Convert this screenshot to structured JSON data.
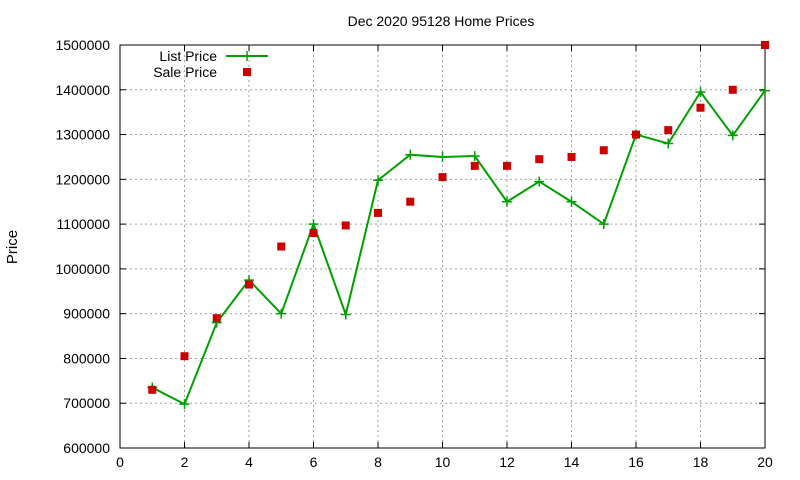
{
  "chart_data": {
    "type": "line",
    "title": "Dec 2020 95128 Home Prices",
    "xlabel": "",
    "ylabel": "Price",
    "xlim": [
      0,
      20
    ],
    "ylim": [
      600000,
      1500000
    ],
    "xticks": [
      0,
      2,
      4,
      6,
      8,
      10,
      12,
      14,
      16,
      18,
      20
    ],
    "yticks": [
      600000,
      700000,
      800000,
      900000,
      1000000,
      1100000,
      1200000,
      1300000,
      1400000,
      1500000
    ],
    "grid": true,
    "legend_position": "top-left",
    "series": [
      {
        "name": "List Price",
        "kind": "line-with-plus-markers",
        "color": "#00a000",
        "x": [
          1,
          2,
          3,
          4,
          5,
          6,
          7,
          8,
          9,
          10,
          11,
          12,
          13,
          14,
          15,
          16,
          17,
          18,
          19,
          20
        ],
        "values": [
          735000,
          698000,
          880000,
          975000,
          900000,
          1100000,
          898000,
          1198000,
          1255000,
          1250000,
          1252000,
          1150000,
          1195000,
          1150000,
          1100000,
          1300000,
          1280000,
          1395000,
          1298000,
          1398000
        ]
      },
      {
        "name": "Sale Price",
        "kind": "square-markers",
        "color": "#cc0000",
        "x": [
          1,
          2,
          3,
          4,
          5,
          6,
          7,
          8,
          9,
          10,
          11,
          12,
          13,
          14,
          15,
          16,
          17,
          18,
          19,
          20
        ],
        "values": [
          730000,
          805000,
          890000,
          965000,
          1050000,
          1080000,
          1097000,
          1125000,
          1150000,
          1205000,
          1230000,
          1230000,
          1245000,
          1250000,
          1265000,
          1300000,
          1310000,
          1360000,
          1400000,
          1500000
        ]
      }
    ]
  }
}
